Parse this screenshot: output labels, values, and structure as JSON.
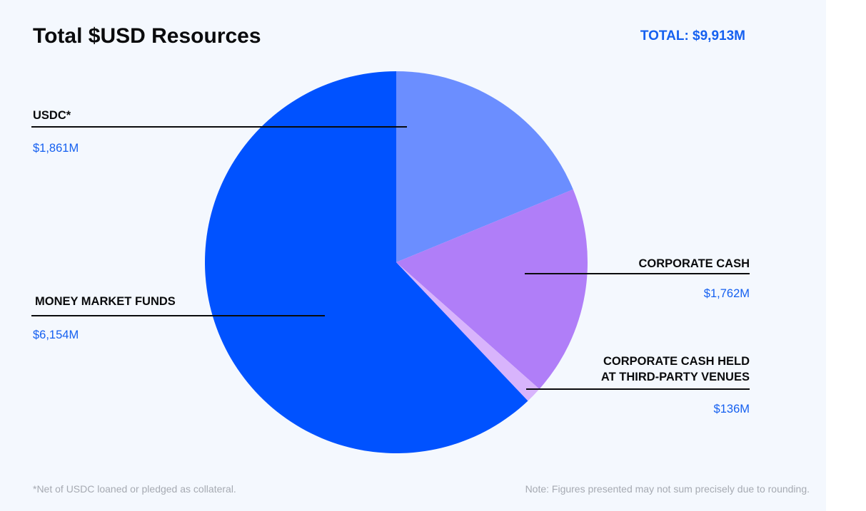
{
  "header": {
    "title": "Total $USD Resources",
    "total": "TOTAL: $9,913M"
  },
  "chart_data": {
    "type": "pie",
    "title": "Total $USD Resources",
    "slices": [
      {
        "label": "USDC*",
        "value_text": "$1,861M",
        "value": 1861,
        "color": "#6b8eff"
      },
      {
        "label": "CORPORATE CASH",
        "value_text": "$1,762M",
        "value": 1762,
        "color": "#b07ef8"
      },
      {
        "label": "CORPORATE CASH HELD AT THIRD-PARTY VENUES",
        "label_line1": "CORPORATE CASH HELD",
        "label_line2": "AT THIRD-PARTY VENUES",
        "value_text": "$136M",
        "value": 136,
        "color": "#d8b4fc"
      },
      {
        "label": "MONEY MARKET FUNDS",
        "value_text": "$6,154M",
        "value": 6154,
        "color": "#0052ff"
      }
    ],
    "start": "12 o'clock",
    "direction": "clockwise"
  },
  "footer": {
    "left_note": "*Net of USDC loaned or pledged as collateral.",
    "right_note": "Note: Figures presented may not sum precisely due to rounding."
  }
}
